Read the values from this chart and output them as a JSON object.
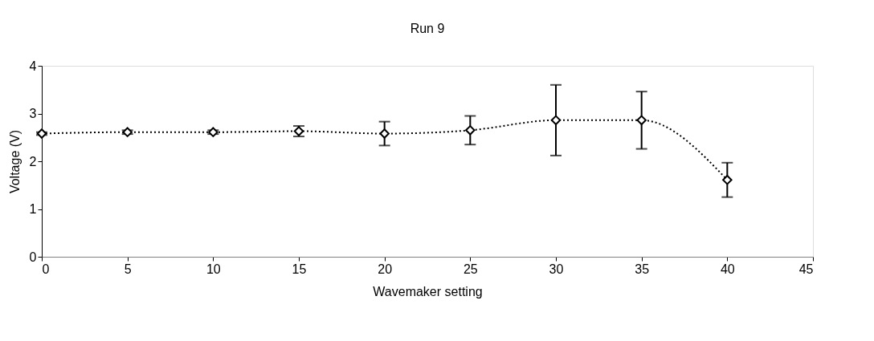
{
  "chart_data": {
    "type": "line",
    "title": "Run 9",
    "xlabel": "Wavemaker setting",
    "ylabel": "Voltage (V)",
    "x": [
      0,
      5,
      10,
      15,
      20,
      25,
      30,
      35,
      40
    ],
    "values": [
      2.58,
      2.61,
      2.61,
      2.63,
      2.58,
      2.65,
      2.86,
      2.86,
      1.61
    ],
    "errors": [
      0.03,
      0.04,
      0.04,
      0.11,
      0.25,
      0.3,
      0.74,
      0.6,
      0.36
    ],
    "color": "#000000",
    "marker": "diamond",
    "line_style": "dotted",
    "xlim": [
      0,
      45
    ],
    "xticks": [
      0,
      5,
      10,
      15,
      20,
      25,
      30,
      35,
      40,
      45
    ],
    "ylim": [
      0,
      4
    ],
    "yticks": [
      0,
      1,
      2,
      3,
      4
    ],
    "grid": false
  }
}
